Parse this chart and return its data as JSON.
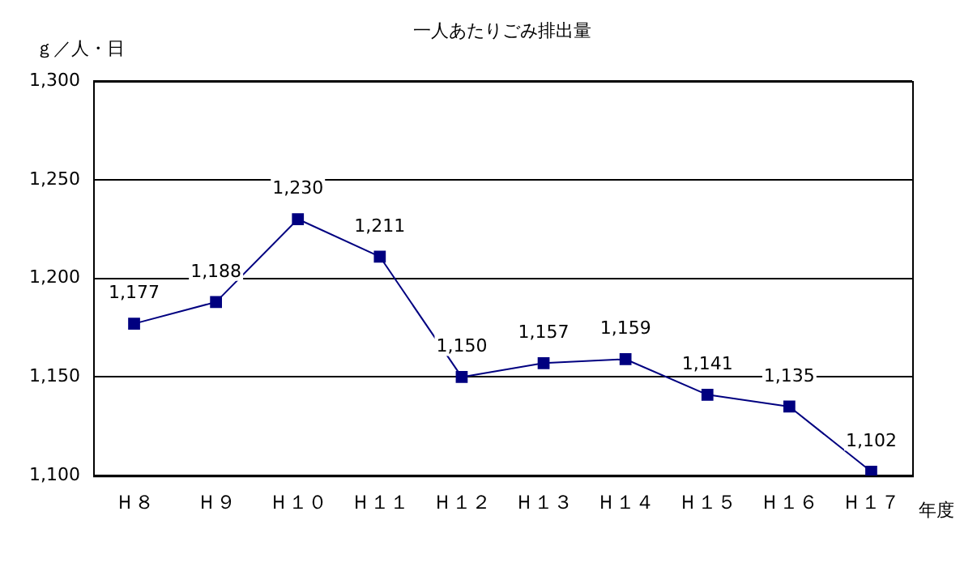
{
  "chart_data": {
    "type": "line",
    "title": "一人あたりごみ排出量",
    "ylabel": "ｇ／人・日",
    "xlabel": "年度",
    "categories": [
      "Ｈ８",
      "Ｈ９",
      "Ｈ１０",
      "Ｈ１１",
      "Ｈ１２",
      "Ｈ１３",
      "Ｈ１４",
      "Ｈ１５",
      "Ｈ１６",
      "Ｈ１７"
    ],
    "values": [
      1177,
      1188,
      1230,
      1211,
      1150,
      1157,
      1159,
      1141,
      1135,
      1102
    ],
    "value_labels": [
      "1,177",
      "1,188",
      "1,230",
      "1,211",
      "1,150",
      "1,157",
      "1,159",
      "1,141",
      "1,135",
      "1,102"
    ],
    "color": "#000080",
    "marker": "square",
    "line_style": "solid",
    "ylim": [
      1100,
      1300
    ],
    "yticks": [
      {
        "value": 1100,
        "label": "1,100"
      },
      {
        "value": 1150,
        "label": "1,150"
      },
      {
        "value": 1200,
        "label": "1,200"
      },
      {
        "value": 1250,
        "label": "1,250"
      },
      {
        "value": 1300,
        "label": "1,300"
      }
    ],
    "grid": "y",
    "legend": false
  }
}
